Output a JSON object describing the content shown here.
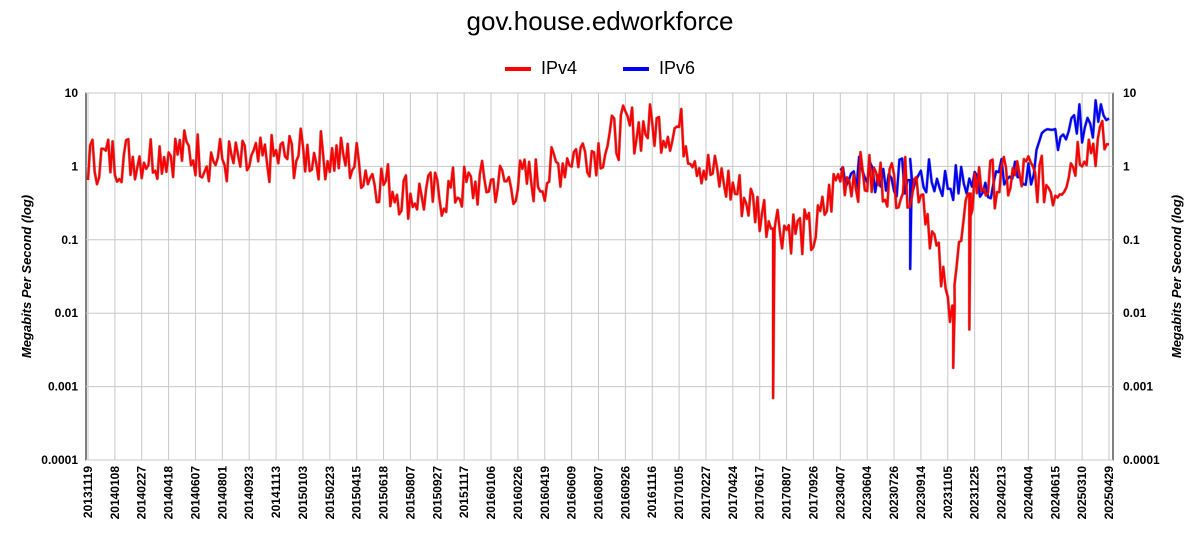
{
  "chart_data": {
    "type": "line",
    "title": "gov.house.edworkforce",
    "ylabel": "Megabits Per Second (log)",
    "xlabel": "",
    "y_scale": "log",
    "ylim": [
      0.0001,
      10
    ],
    "y_ticks": [
      "10",
      "1",
      "0.1",
      "0.01",
      "0.001",
      "0.0001"
    ],
    "x_tick_labels": [
      "20131119",
      "20140108",
      "20140227",
      "20140418",
      "20140607",
      "20140801",
      "20140923",
      "20141113",
      "20150103",
      "20150223",
      "20150415",
      "20150618",
      "20150807",
      "20150927",
      "20151117",
      "20160106",
      "20160226",
      "20160419",
      "20160609",
      "20160807",
      "20160926",
      "20161116",
      "20170105",
      "20170227",
      "20170424",
      "20170617",
      "20170807",
      "20170926",
      "20230407",
      "20230604",
      "20230726",
      "20230914",
      "20231105",
      "20231225",
      "20240213",
      "20240404",
      "20240615",
      "20250310",
      "20250429"
    ],
    "legend_position": "top",
    "grid": true,
    "series": [
      {
        "name": "IPv4",
        "color": "#ff0000",
        "x_index": [
          0,
          1,
          2,
          3,
          4,
          5,
          6,
          7,
          8,
          9,
          10,
          11,
          12,
          13,
          14,
          15,
          16,
          17,
          18,
          19,
          20,
          21,
          22,
          23,
          24,
          25,
          26,
          27,
          28,
          29,
          30,
          31,
          32,
          33,
          34,
          35,
          36,
          37,
          38
        ],
        "values": [
          1.2,
          1.3,
          1.4,
          1.6,
          1.5,
          1.2,
          1.0,
          1.3,
          1.5,
          1.4,
          1.1,
          0.6,
          0.4,
          0.4,
          0.5,
          0.6,
          0.6,
          0.7,
          1.5,
          1.7,
          3.2,
          3.4,
          3.3,
          0.9,
          0.5,
          0.25,
          0.15,
          0.11,
          0.8,
          0.7,
          0.6,
          0.6,
          0.012,
          0.6,
          0.6,
          0.8,
          0.5,
          2.0,
          2.0
        ]
      },
      {
        "name": "IPv6",
        "color": "#0000ff",
        "x_index": [
          28,
          29,
          30,
          31,
          32,
          33,
          34,
          35,
          36,
          37,
          38
        ],
        "values": [
          0.9,
          0.8,
          0.7,
          0.7,
          0.6,
          0.6,
          0.7,
          0.8,
          3.0,
          4.0,
          4.5
        ]
      }
    ],
    "annotations": {
      "ipv4_dips": [
        {
          "x_index": 25.5,
          "value": 0.0007
        },
        {
          "x_index": 32.2,
          "value": 0.0018
        },
        {
          "x_index": 32.8,
          "value": 0.006
        }
      ],
      "ipv6_dips": [
        {
          "x_index": 30.6,
          "value": 0.04
        }
      ]
    }
  }
}
